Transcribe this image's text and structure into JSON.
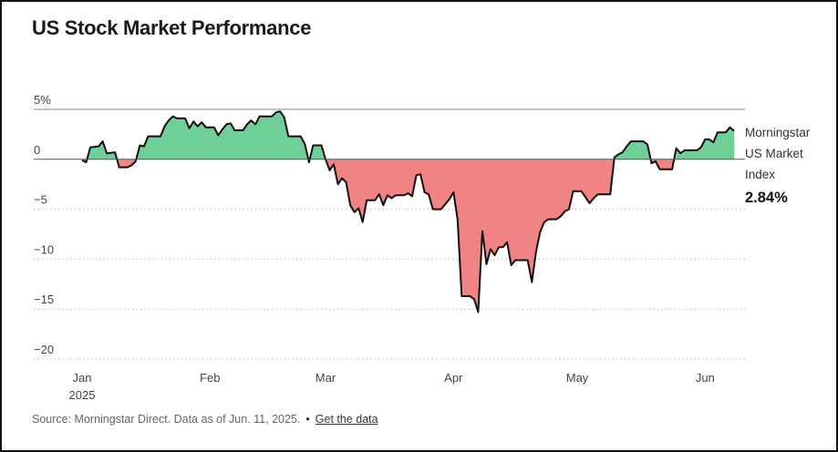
{
  "title": "US Stock Market Performance",
  "footer": {
    "source": "Source: Morningstar Direct. Data as of Jun. 11, 2025.",
    "link_label": "Get the data"
  },
  "colors": {
    "positive_fill": "#6ecf97",
    "negative_fill": "#f08383",
    "line": "#111111",
    "zero_line": "#555555",
    "grid": "#bbbbbb"
  },
  "chart_data": {
    "type": "area",
    "title": "US Stock Market Performance",
    "series_label_lines": [
      "Morningstar",
      "US Market",
      "Index"
    ],
    "end_value_label": "2.84%",
    "ylim": [
      -20,
      5
    ],
    "y_ticks": [
      5,
      0,
      -5,
      -10,
      -15,
      -20
    ],
    "y_tick_labels": [
      "5%",
      "0",
      "−5",
      "−10",
      "−15",
      "−20"
    ],
    "x_ticks": [
      {
        "day": 2,
        "label": "Jan",
        "sublabel": "2025"
      },
      {
        "day": 33,
        "label": "Feb"
      },
      {
        "day": 61,
        "label": "Mar"
      },
      {
        "day": 92,
        "label": "Apr"
      },
      {
        "day": 122,
        "label": "May"
      },
      {
        "day": 153,
        "label": "Jun"
      }
    ],
    "grid": "horizontal dotted",
    "legend": "right",
    "x_units": "day of 2025 (Jan 1 = 1)",
    "points": [
      [
        2,
        -0.1
      ],
      [
        3,
        -0.3
      ],
      [
        4,
        1.2
      ],
      [
        6,
        1.3
      ],
      [
        7,
        1.8
      ],
      [
        8,
        0.6
      ],
      [
        10,
        0.7
      ],
      [
        11,
        -0.8
      ],
      [
        13,
        -0.8
      ],
      [
        14,
        -0.6
      ],
      [
        15,
        -0.2
      ],
      [
        16,
        1.4
      ],
      [
        17,
        1.3
      ],
      [
        18,
        2.3
      ],
      [
        21,
        2.3
      ],
      [
        22,
        3.3
      ],
      [
        23,
        3.9
      ],
      [
        24,
        4.3
      ],
      [
        25,
        4.1
      ],
      [
        27,
        4.1
      ],
      [
        28,
        3.1
      ],
      [
        29,
        3.8
      ],
      [
        30,
        3.3
      ],
      [
        31,
        3.7
      ],
      [
        32,
        3.2
      ],
      [
        34,
        3.2
      ],
      [
        35,
        2.4
      ],
      [
        36,
        3.0
      ],
      [
        37,
        3.5
      ],
      [
        38,
        3.6
      ],
      [
        39,
        2.9
      ],
      [
        41,
        2.9
      ],
      [
        42,
        3.5
      ],
      [
        43,
        3.9
      ],
      [
        44,
        3.5
      ],
      [
        45,
        4.3
      ],
      [
        48,
        4.3
      ],
      [
        49,
        4.7
      ],
      [
        50,
        4.8
      ],
      [
        51,
        4.2
      ],
      [
        52,
        2.3
      ],
      [
        55,
        2.3
      ],
      [
        56,
        1.5
      ],
      [
        57,
        -0.3
      ],
      [
        58,
        1.4
      ],
      [
        60,
        1.4
      ],
      [
        61,
        0.0
      ],
      [
        62,
        -1.1
      ],
      [
        63,
        -0.5
      ],
      [
        64,
        -2.5
      ],
      [
        65,
        -1.9
      ],
      [
        66,
        -2.3
      ],
      [
        67,
        -4.6
      ],
      [
        68,
        -5.3
      ],
      [
        69,
        -4.9
      ],
      [
        70,
        -6.3
      ],
      [
        71,
        -4.1
      ],
      [
        73,
        -4.1
      ],
      [
        74,
        -3.5
      ],
      [
        75,
        -4.6
      ],
      [
        76,
        -3.6
      ],
      [
        77,
        -3.9
      ],
      [
        78,
        -3.6
      ],
      [
        80,
        -3.6
      ],
      [
        81,
        -3.4
      ],
      [
        82,
        -3.7
      ],
      [
        83,
        -1.6
      ],
      [
        84,
        -1.5
      ],
      [
        85,
        -3.3
      ],
      [
        86,
        -3.5
      ],
      [
        87,
        -5.0
      ],
      [
        89,
        -5.0
      ],
      [
        90,
        -4.5
      ],
      [
        91,
        -4.0
      ],
      [
        92,
        -3.3
      ],
      [
        93,
        -6.0
      ],
      [
        94,
        -13.7
      ],
      [
        96,
        -13.7
      ],
      [
        97,
        -14.0
      ],
      [
        98,
        -15.3
      ],
      [
        99,
        -7.2
      ],
      [
        100,
        -10.5
      ],
      [
        101,
        -9.0
      ],
      [
        102,
        -9.6
      ],
      [
        103,
        -8.8
      ],
      [
        104,
        -8.8
      ],
      [
        105,
        -8.3
      ],
      [
        106,
        -10.6
      ],
      [
        107,
        -10.1
      ],
      [
        110,
        -10.1
      ],
      [
        111,
        -12.3
      ],
      [
        112,
        -9.3
      ],
      [
        113,
        -7.3
      ],
      [
        114,
        -6.3
      ],
      [
        115,
        -6.0
      ],
      [
        117,
        -6.0
      ],
      [
        118,
        -5.7
      ],
      [
        119,
        -5.2
      ],
      [
        120,
        -5.0
      ],
      [
        121,
        -3.2
      ],
      [
        123,
        -3.2
      ],
      [
        124,
        -3.8
      ],
      [
        125,
        -4.4
      ],
      [
        126,
        -3.9
      ],
      [
        127,
        -3.5
      ],
      [
        130,
        -3.5
      ],
      [
        131,
        0.2
      ],
      [
        132,
        0.5
      ],
      [
        133,
        0.7
      ],
      [
        134,
        1.3
      ],
      [
        135,
        1.8
      ],
      [
        138,
        1.8
      ],
      [
        139,
        1.5
      ],
      [
        140,
        -0.4
      ],
      [
        141,
        -0.2
      ],
      [
        142,
        -1.0
      ],
      [
        145,
        -1.0
      ],
      [
        146,
        1.1
      ],
      [
        147,
        0.6
      ],
      [
        148,
        0.9
      ],
      [
        151,
        0.9
      ],
      [
        152,
        1.2
      ],
      [
        153,
        2.0
      ],
      [
        154,
        2.0
      ],
      [
        155,
        1.7
      ],
      [
        156,
        2.7
      ],
      [
        158,
        2.7
      ],
      [
        159,
        3.2
      ],
      [
        160,
        2.84
      ]
    ]
  }
}
